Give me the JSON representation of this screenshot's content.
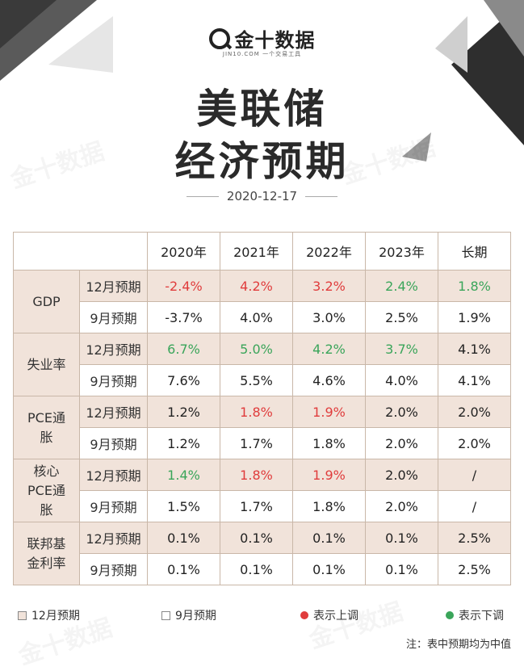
{
  "brand": {
    "name": "金十数据",
    "sub": "JIN10.COM  一个交易工具"
  },
  "title": {
    "line1": "美联储",
    "line2": "经济预期"
  },
  "date": "2020-12-17",
  "table": {
    "columns": [
      "2020年",
      "2021年",
      "2022年",
      "2023年",
      "长期"
    ],
    "groups": [
      {
        "label": "GDP",
        "rows": [
          {
            "label": "12月预期",
            "kind": "dec",
            "cells": [
              {
                "v": "-2.4%",
                "s": "up"
              },
              {
                "v": "4.2%",
                "s": "up"
              },
              {
                "v": "3.2%",
                "s": "up"
              },
              {
                "v": "2.4%",
                "s": "down"
              },
              {
                "v": "1.8%",
                "s": "down"
              }
            ]
          },
          {
            "label": "9月预期",
            "kind": "sep",
            "cells": [
              {
                "v": "-3.7%",
                "s": ""
              },
              {
                "v": "4.0%",
                "s": ""
              },
              {
                "v": "3.0%",
                "s": ""
              },
              {
                "v": "2.5%",
                "s": ""
              },
              {
                "v": "1.9%",
                "s": ""
              }
            ]
          }
        ]
      },
      {
        "label": "失业率",
        "rows": [
          {
            "label": "12月预期",
            "kind": "dec",
            "cells": [
              {
                "v": "6.7%",
                "s": "down"
              },
              {
                "v": "5.0%",
                "s": "down"
              },
              {
                "v": "4.2%",
                "s": "down"
              },
              {
                "v": "3.7%",
                "s": "down"
              },
              {
                "v": "4.1%",
                "s": ""
              }
            ]
          },
          {
            "label": "9月预期",
            "kind": "sep",
            "cells": [
              {
                "v": "7.6%",
                "s": ""
              },
              {
                "v": "5.5%",
                "s": ""
              },
              {
                "v": "4.6%",
                "s": ""
              },
              {
                "v": "4.0%",
                "s": ""
              },
              {
                "v": "4.1%",
                "s": ""
              }
            ]
          }
        ]
      },
      {
        "label": "PCE通胀",
        "rows": [
          {
            "label": "12月预期",
            "kind": "dec",
            "cells": [
              {
                "v": "1.2%",
                "s": ""
              },
              {
                "v": "1.8%",
                "s": "up"
              },
              {
                "v": "1.9%",
                "s": "up"
              },
              {
                "v": "2.0%",
                "s": ""
              },
              {
                "v": "2.0%",
                "s": ""
              }
            ]
          },
          {
            "label": "9月预期",
            "kind": "sep",
            "cells": [
              {
                "v": "1.2%",
                "s": ""
              },
              {
                "v": "1.7%",
                "s": ""
              },
              {
                "v": "1.8%",
                "s": ""
              },
              {
                "v": "2.0%",
                "s": ""
              },
              {
                "v": "2.0%",
                "s": ""
              }
            ]
          }
        ]
      },
      {
        "label": "核心PCE通胀",
        "rows": [
          {
            "label": "12月预期",
            "kind": "dec",
            "cells": [
              {
                "v": "1.4%",
                "s": "down"
              },
              {
                "v": "1.8%",
                "s": "up"
              },
              {
                "v": "1.9%",
                "s": "up"
              },
              {
                "v": "2.0%",
                "s": ""
              },
              {
                "v": "/",
                "s": ""
              }
            ]
          },
          {
            "label": "9月预期",
            "kind": "sep",
            "cells": [
              {
                "v": "1.5%",
                "s": ""
              },
              {
                "v": "1.7%",
                "s": ""
              },
              {
                "v": "1.8%",
                "s": ""
              },
              {
                "v": "2.0%",
                "s": ""
              },
              {
                "v": "/",
                "s": ""
              }
            ]
          }
        ]
      },
      {
        "label": "联邦基金利率",
        "rows": [
          {
            "label": "12月预期",
            "kind": "dec",
            "cells": [
              {
                "v": "0.1%",
                "s": ""
              },
              {
                "v": "0.1%",
                "s": ""
              },
              {
                "v": "0.1%",
                "s": ""
              },
              {
                "v": "0.1%",
                "s": ""
              },
              {
                "v": "2.5%",
                "s": ""
              }
            ]
          },
          {
            "label": "9月预期",
            "kind": "sep",
            "cells": [
              {
                "v": "0.1%",
                "s": ""
              },
              {
                "v": "0.1%",
                "s": ""
              },
              {
                "v": "0.1%",
                "s": ""
              },
              {
                "v": "0.1%",
                "s": ""
              },
              {
                "v": "2.5%",
                "s": ""
              }
            ]
          }
        ]
      }
    ]
  },
  "legend": {
    "dec": "12月预期",
    "sep": "9月预期",
    "up": "表示上调",
    "down": "表示下调"
  },
  "note": "注：表中预期均为中值",
  "watermark": "金十数据",
  "colors": {
    "up": "#e03c3c",
    "down": "#3aa55a",
    "dec_bg": "#f1e3da",
    "border": "#c9b7a8"
  }
}
